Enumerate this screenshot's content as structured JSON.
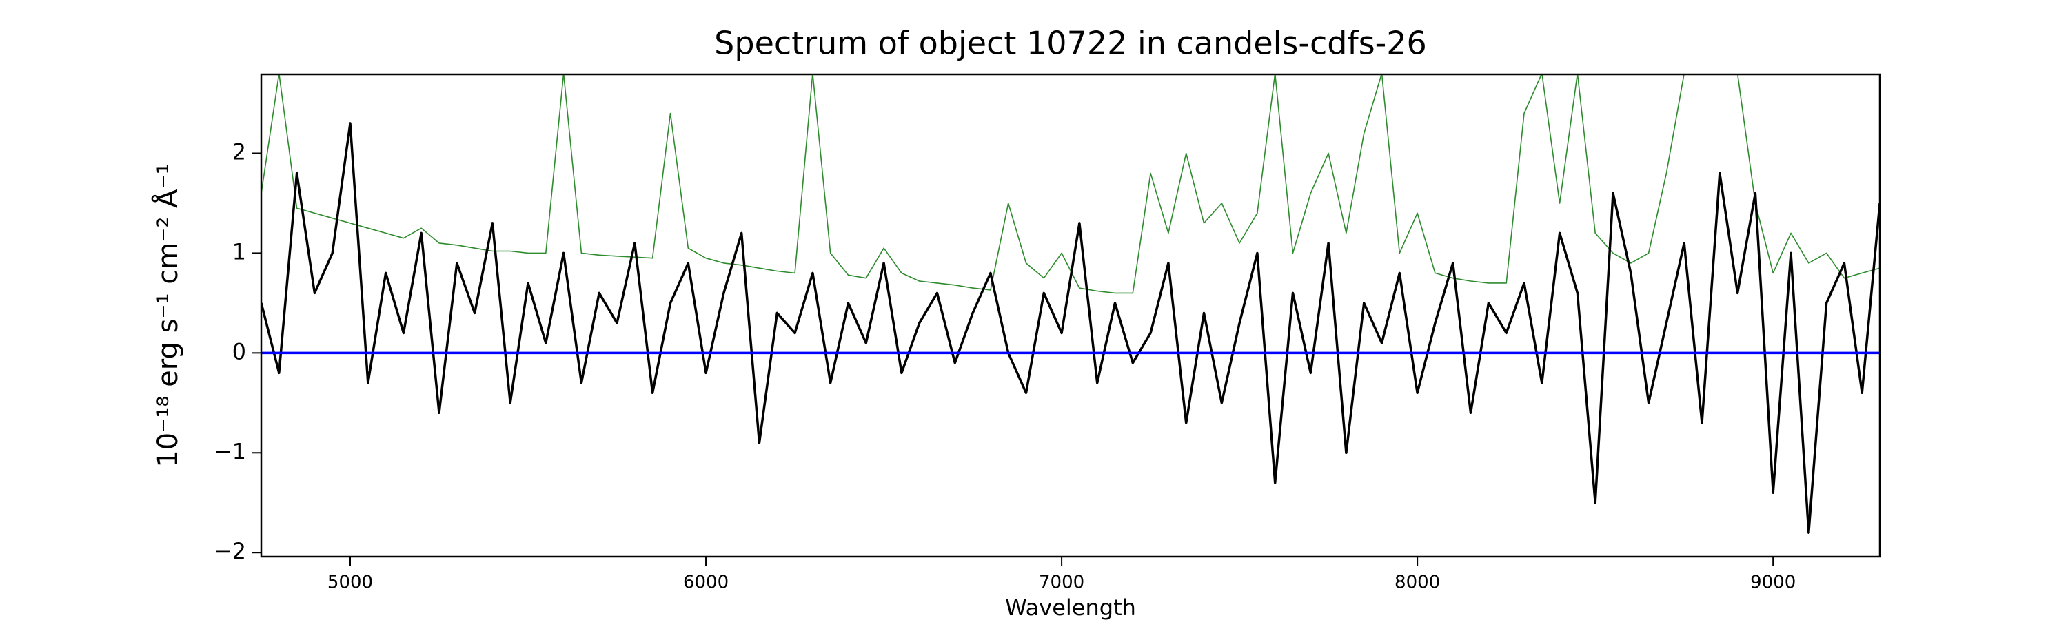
{
  "chart_data": {
    "type": "line",
    "title": "Spectrum of object 10722 in candels-cdfs-26",
    "xlabel": "Wavelength",
    "ylabel": "10⁻¹⁸ erg s⁻¹ cm⁻² Å⁻¹",
    "x": [
      4750,
      4800,
      4850,
      4900,
      4950,
      5000,
      5050,
      5100,
      5150,
      5200,
      5250,
      5300,
      5350,
      5400,
      5450,
      5500,
      5550,
      5600,
      5650,
      5700,
      5750,
      5800,
      5850,
      5900,
      5950,
      6000,
      6050,
      6100,
      6150,
      6200,
      6250,
      6300,
      6350,
      6400,
      6450,
      6500,
      6550,
      6600,
      6650,
      6700,
      6750,
      6800,
      6850,
      6900,
      6950,
      7000,
      7050,
      7100,
      7150,
      7200,
      7250,
      7300,
      7350,
      7400,
      7450,
      7500,
      7550,
      7600,
      7650,
      7700,
      7750,
      7800,
      7850,
      7900,
      7950,
      8000,
      8050,
      8100,
      8150,
      8200,
      8250,
      8300,
      8350,
      8400,
      8450,
      8500,
      8550,
      8600,
      8650,
      8700,
      8750,
      8800,
      8850,
      8900,
      8950,
      9000,
      9050,
      9100,
      9150,
      9200,
      9250,
      9300
    ],
    "series": [
      {
        "color": "#2e8b2e",
        "values": [
          1.6,
          2.8,
          1.45,
          1.4,
          1.35,
          1.3,
          1.25,
          1.2,
          1.15,
          1.25,
          1.1,
          1.08,
          1.05,
          1.02,
          1.02,
          1.0,
          1.0,
          2.8,
          1.0,
          0.98,
          0.97,
          0.96,
          0.95,
          2.4,
          1.05,
          0.95,
          0.9,
          0.88,
          0.85,
          0.82,
          0.8,
          2.8,
          1.0,
          0.78,
          0.75,
          1.05,
          0.8,
          0.72,
          0.7,
          0.68,
          0.65,
          0.63,
          1.5,
          0.9,
          0.75,
          1.0,
          0.65,
          0.62,
          0.6,
          0.6,
          1.8,
          1.2,
          2.0,
          1.3,
          1.5,
          1.1,
          1.4,
          2.8,
          1.0,
          1.6,
          2.0,
          1.2,
          2.2,
          2.8,
          1.0,
          1.4,
          0.8,
          0.75,
          0.72,
          0.7,
          0.7,
          2.4,
          2.8,
          1.5,
          2.8,
          1.2,
          1.0,
          0.9,
          1.0,
          1.8,
          2.8,
          2.8,
          2.8,
          2.8,
          1.5,
          0.8,
          1.2,
          0.9,
          1.0,
          0.75,
          0.8,
          0.85
        ]
      },
      {
        "color": "#000000",
        "values": [
          0.5,
          -0.2,
          1.8,
          0.6,
          1.0,
          2.3,
          -0.3,
          0.8,
          0.2,
          1.2,
          -0.6,
          0.9,
          0.4,
          1.3,
          -0.5,
          0.7,
          0.1,
          1.0,
          -0.3,
          0.6,
          0.3,
          1.1,
          -0.4,
          0.5,
          0.9,
          -0.2,
          0.6,
          1.2,
          -0.9,
          0.4,
          0.2,
          0.8,
          -0.3,
          0.5,
          0.1,
          0.9,
          -0.2,
          0.3,
          0.6,
          -0.1,
          0.4,
          0.8,
          0.0,
          -0.4,
          0.6,
          0.2,
          1.3,
          -0.3,
          0.5,
          -0.1,
          0.2,
          0.9,
          -0.7,
          0.4,
          -0.5,
          0.3,
          1.0,
          -1.3,
          0.6,
          -0.2,
          1.1,
          -1.0,
          0.5,
          0.1,
          0.8,
          -0.4,
          0.3,
          0.9,
          -0.6,
          0.5,
          0.2,
          0.7,
          -0.3,
          1.2,
          0.6,
          -1.5,
          1.6,
          0.8,
          -0.5,
          0.3,
          1.1,
          -0.7,
          1.8,
          0.6,
          1.6,
          -1.4,
          1.0,
          -1.8,
          0.5,
          0.9,
          -0.4,
          1.5
        ]
      }
    ],
    "hline": {
      "value": 0,
      "color": "#0000ff"
    },
    "xlim": [
      4750,
      9300
    ],
    "xticks": [
      5000,
      6000,
      7000,
      8000,
      9000
    ],
    "ylim": [
      -2.04,
      2.79
    ],
    "yticks": [
      {
        "value": -2,
        "label": "−2"
      },
      {
        "value": -1,
        "label": "−1"
      },
      0,
      1,
      2
    ]
  }
}
